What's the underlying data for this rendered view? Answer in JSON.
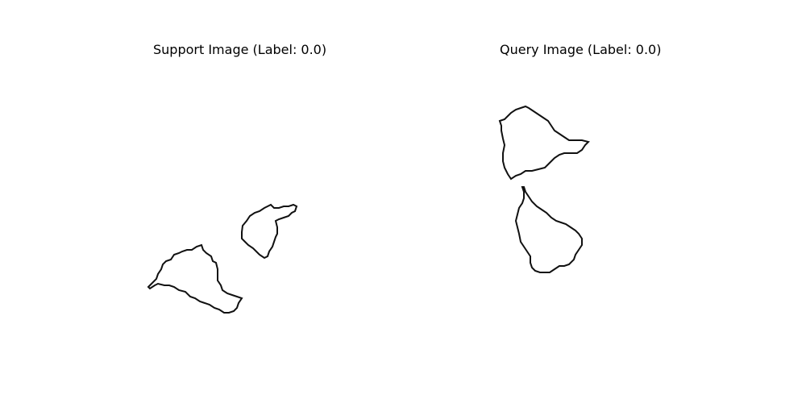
{
  "figure": {
    "support": {
      "title": "Support Image (Label: 0.0)",
      "shapes": [
        "support-shape-upper-icon",
        "support-shape-lower-icon"
      ]
    },
    "query": {
      "title": "Query Image (Label: 0.0)",
      "shapes": [
        "query-shape-upper-icon",
        "query-shape-lower-icon"
      ]
    },
    "colors": {
      "stroke": "#000000",
      "background": "#ffffff"
    }
  }
}
